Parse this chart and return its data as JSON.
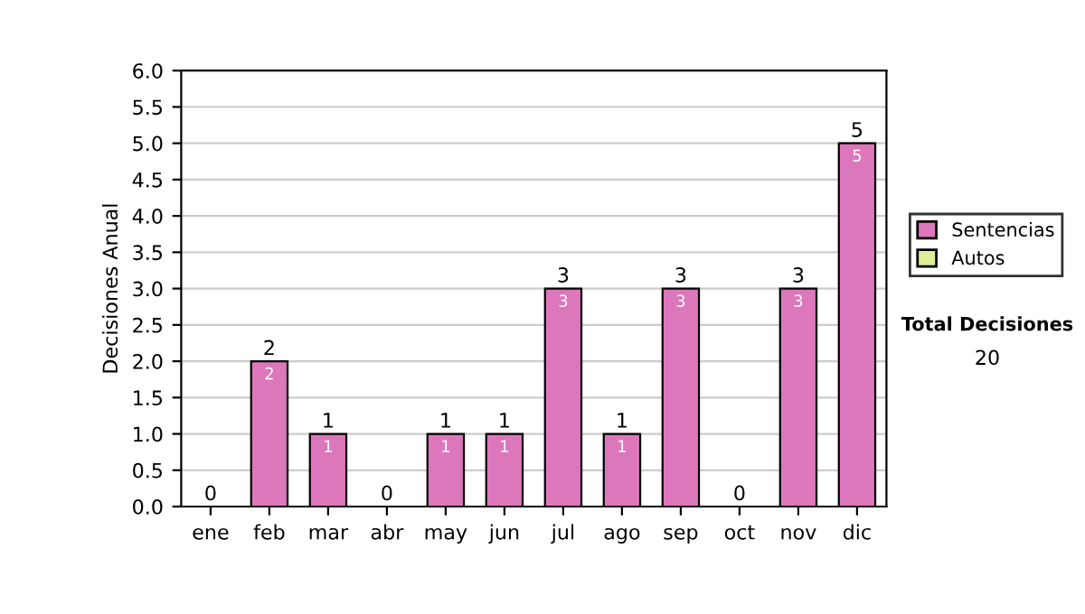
{
  "chart_data": {
    "type": "bar",
    "stacked": true,
    "ylabel": "Decisiones Anual",
    "categories": [
      "ene",
      "feb",
      "mar",
      "abr",
      "may",
      "jun",
      "jul",
      "ago",
      "sep",
      "oct",
      "nov",
      "dic"
    ],
    "series": [
      {
        "name": "Sentencias",
        "color": "#dd77bb",
        "values": [
          0,
          2,
          1,
          0,
          1,
          1,
          3,
          1,
          3,
          0,
          3,
          5
        ],
        "value_labels": [
          null,
          "2",
          "1",
          null,
          "1",
          "1",
          "3",
          "1",
          "3",
          null,
          "3",
          "5"
        ]
      },
      {
        "name": "Autos",
        "color": "#ddee99",
        "values": [
          0,
          0,
          0,
          0,
          0,
          0,
          0,
          0,
          0,
          0,
          0,
          0
        ]
      }
    ],
    "totals": [
      "0",
      "2",
      "1",
      "0",
      "1",
      "1",
      "3",
      "1",
      "3",
      "0",
      "3",
      "5"
    ],
    "ylim": [
      0,
      6
    ],
    "yticks": [
      {
        "value": 0,
        "label": "0.0"
      },
      {
        "value": 0.5,
        "label": "0.5"
      },
      {
        "value": 1,
        "label": "1.0"
      },
      {
        "value": 1.5,
        "label": "1.5"
      },
      {
        "value": 2,
        "label": "2.0"
      },
      {
        "value": 2.5,
        "label": "2.5"
      },
      {
        "value": 3,
        "label": "3.0"
      },
      {
        "value": 3.5,
        "label": "3.5"
      },
      {
        "value": 4,
        "label": "4.0"
      },
      {
        "value": 4.5,
        "label": "4.5"
      },
      {
        "value": 5,
        "label": "5.0"
      },
      {
        "value": 5.5,
        "label": "5.5"
      },
      {
        "value": 6,
        "label": "6.0"
      }
    ],
    "grid": "y",
    "legend": "right",
    "annotations": [
      "Total Decisiones",
      "20"
    ]
  }
}
